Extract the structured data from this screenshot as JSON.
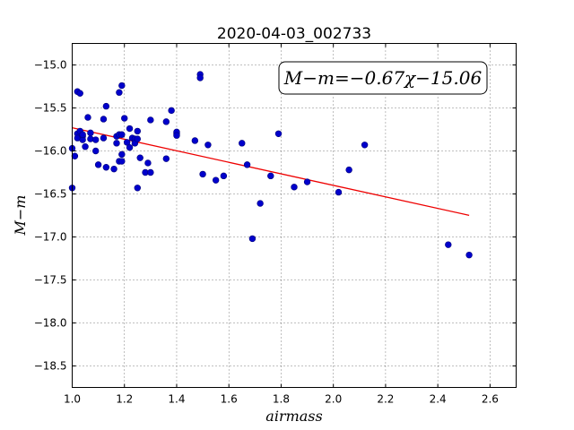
{
  "chart_data": {
    "type": "scatter",
    "title": "2020-04-03_002733",
    "xlabel": "airmass",
    "ylabel": "M−m",
    "xlim": [
      1.0,
      2.7
    ],
    "ylim": [
      -18.75,
      -14.75
    ],
    "y_inverted": true,
    "grid": true,
    "xticks": [
      "1.0",
      "1.2",
      "1.4",
      "1.6",
      "1.8",
      "2.0",
      "2.2",
      "2.4",
      "2.6"
    ],
    "yticks": [
      "−15.0",
      "−15.5",
      "−16.0",
      "−16.5",
      "−17.0",
      "−17.5",
      "−18.0",
      "−18.5"
    ],
    "annotation": "M−m=−0.67χ−15.06",
    "fit_line": {
      "slope": -0.67,
      "intercept": -15.06,
      "x_range": [
        1.0,
        2.52
      ],
      "color": "#ee0000"
    },
    "point_color": "#0000cc",
    "points": [
      [
        1.0,
        -16.43
      ],
      [
        1.0,
        -15.97
      ],
      [
        1.01,
        -16.06
      ],
      [
        1.02,
        -15.31
      ],
      [
        1.03,
        -15.33
      ],
      [
        1.02,
        -15.8
      ],
      [
        1.02,
        -15.85
      ],
      [
        1.03,
        -15.77
      ],
      [
        1.04,
        -15.83
      ],
      [
        1.04,
        -15.87
      ],
      [
        1.04,
        -15.81
      ],
      [
        1.05,
        -15.95
      ],
      [
        1.06,
        -15.61
      ],
      [
        1.07,
        -15.86
      ],
      [
        1.07,
        -15.79
      ],
      [
        1.09,
        -16.0
      ],
      [
        1.09,
        -15.87
      ],
      [
        1.1,
        -16.16
      ],
      [
        1.12,
        -15.85
      ],
      [
        1.12,
        -15.63
      ],
      [
        1.13,
        -15.48
      ],
      [
        1.13,
        -16.19
      ],
      [
        1.16,
        -16.21
      ],
      [
        1.17,
        -15.91
      ],
      [
        1.17,
        -15.83
      ],
      [
        1.18,
        -15.32
      ],
      [
        1.18,
        -15.81
      ],
      [
        1.18,
        -16.12
      ],
      [
        1.19,
        -16.04
      ],
      [
        1.19,
        -15.24
      ],
      [
        1.19,
        -15.81
      ],
      [
        1.19,
        -16.12
      ],
      [
        1.2,
        -15.62
      ],
      [
        1.21,
        -15.9
      ],
      [
        1.22,
        -15.74
      ],
      [
        1.22,
        -15.96
      ],
      [
        1.23,
        -15.85
      ],
      [
        1.24,
        -15.86
      ],
      [
        1.24,
        -15.91
      ],
      [
        1.25,
        -16.43
      ],
      [
        1.25,
        -15.77
      ],
      [
        1.25,
        -15.86
      ],
      [
        1.26,
        -16.08
      ],
      [
        1.28,
        -16.25
      ],
      [
        1.29,
        -16.14
      ],
      [
        1.3,
        -15.64
      ],
      [
        1.3,
        -16.25
      ],
      [
        1.36,
        -15.66
      ],
      [
        1.36,
        -16.09
      ],
      [
        1.38,
        -15.53
      ],
      [
        1.4,
        -15.8
      ],
      [
        1.4,
        -15.78
      ],
      [
        1.4,
        -15.82
      ],
      [
        1.47,
        -15.88
      ],
      [
        1.49,
        -15.11
      ],
      [
        1.49,
        -15.15
      ],
      [
        1.5,
        -16.27
      ],
      [
        1.52,
        -15.93
      ],
      [
        1.55,
        -16.34
      ],
      [
        1.58,
        -16.29
      ],
      [
        1.65,
        -15.91
      ],
      [
        1.67,
        -16.16
      ],
      [
        1.69,
        -17.02
      ],
      [
        1.72,
        -16.61
      ],
      [
        1.76,
        -16.29
      ],
      [
        1.79,
        -15.8
      ],
      [
        1.85,
        -16.42
      ],
      [
        1.9,
        -16.36
      ],
      [
        2.02,
        -16.48
      ],
      [
        2.06,
        -16.22
      ],
      [
        2.12,
        -15.93
      ],
      [
        2.44,
        -17.09
      ],
      [
        2.52,
        -17.21
      ]
    ]
  }
}
